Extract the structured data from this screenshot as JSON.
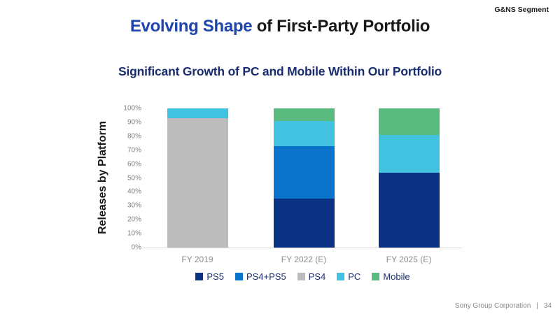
{
  "header": {
    "segment_label": "G&NS Segment",
    "title_highlight": "Evolving Shape",
    "title_rest": " of First-Party Portfolio"
  },
  "subtitle": "Significant Growth of PC and Mobile Within Our Portfolio",
  "colors": {
    "ps5": "#0b3282",
    "ps4_ps5": "#0a73cb",
    "ps4": "#bcbcbc",
    "pc": "#41c2e0",
    "mobile": "#58ba7c",
    "title_highlight_blue": "#1e44ad",
    "subtitle_navy": "#1a2d6e",
    "axis_text_gray": "#7f7f7f",
    "axis_line_gray": "#d9d9d9"
  },
  "chart_data": {
    "type": "bar",
    "stacked": true,
    "title": "Significant Growth of PC and Mobile Within Our Portfolio",
    "xlabel": "",
    "ylabel": "Releases by Platform",
    "ylim": [
      0,
      100
    ],
    "grid": false,
    "legend_position": "bottom",
    "categories": [
      "FY 2019",
      "FY 2022 (E)",
      "FY 2025 (E)"
    ],
    "y_ticks": [
      "100%",
      "90%",
      "80%",
      "70%",
      "60%",
      "50%",
      "40%",
      "30%",
      "20%",
      "10%",
      "0%"
    ],
    "series": [
      {
        "name": "PS5",
        "color_key": "ps5",
        "values": [
          0,
          35,
          54
        ]
      },
      {
        "name": "PS4+PS5",
        "color_key": "ps4_ps5",
        "values": [
          0,
          38,
          0
        ]
      },
      {
        "name": "PS4",
        "color_key": "ps4",
        "values": [
          93,
          0,
          0
        ]
      },
      {
        "name": "PC",
        "color_key": "pc",
        "values": [
          7,
          18,
          27
        ]
      },
      {
        "name": "Mobile",
        "color_key": "mobile",
        "values": [
          0,
          9,
          19
        ]
      }
    ]
  },
  "footer": {
    "company": "Sony Group Corporation",
    "separator": "|",
    "page": "34"
  }
}
